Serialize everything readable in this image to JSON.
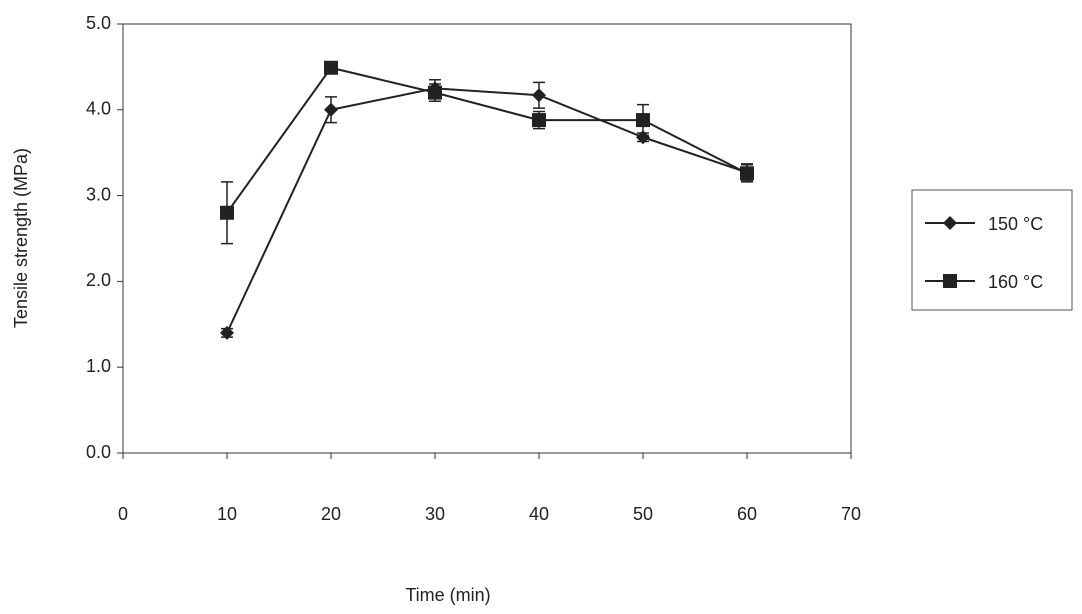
{
  "chart_data": {
    "type": "line",
    "x_label": "Time (min)",
    "y_label": "Tensile strength (MPa)",
    "x": [
      10,
      20,
      30,
      40,
      50,
      60
    ],
    "series": [
      {
        "name": "150 °C",
        "color": "#222222",
        "marker": "diamond",
        "values": [
          1.4,
          4.0,
          4.25,
          4.17,
          3.68,
          3.27
        ],
        "errors": [
          0.05,
          0.15,
          0.1,
          0.15,
          0.05,
          0.1
        ]
      },
      {
        "name": "160 °C",
        "color": "#222222",
        "marker": "square",
        "values": [
          2.8,
          4.49,
          4.2,
          3.88,
          3.88,
          3.26
        ],
        "errors": [
          0.36,
          0.03,
          0.1,
          0.1,
          0.18,
          0.1
        ]
      }
    ],
    "xlim": [
      0,
      70
    ],
    "xticks": [
      0,
      10,
      20,
      30,
      40,
      50,
      60,
      70
    ],
    "ylim": [
      0,
      5
    ],
    "yticks": [
      {
        "value": 0,
        "label": "0.0"
      },
      {
        "value": 1,
        "label": "1.0"
      },
      {
        "value": 2,
        "label": "2.0"
      },
      {
        "value": 3,
        "label": "3.0"
      },
      {
        "value": 4,
        "label": "4.0"
      },
      {
        "value": 5,
        "label": "5.0"
      }
    ],
    "grid": false,
    "legend": "right"
  }
}
